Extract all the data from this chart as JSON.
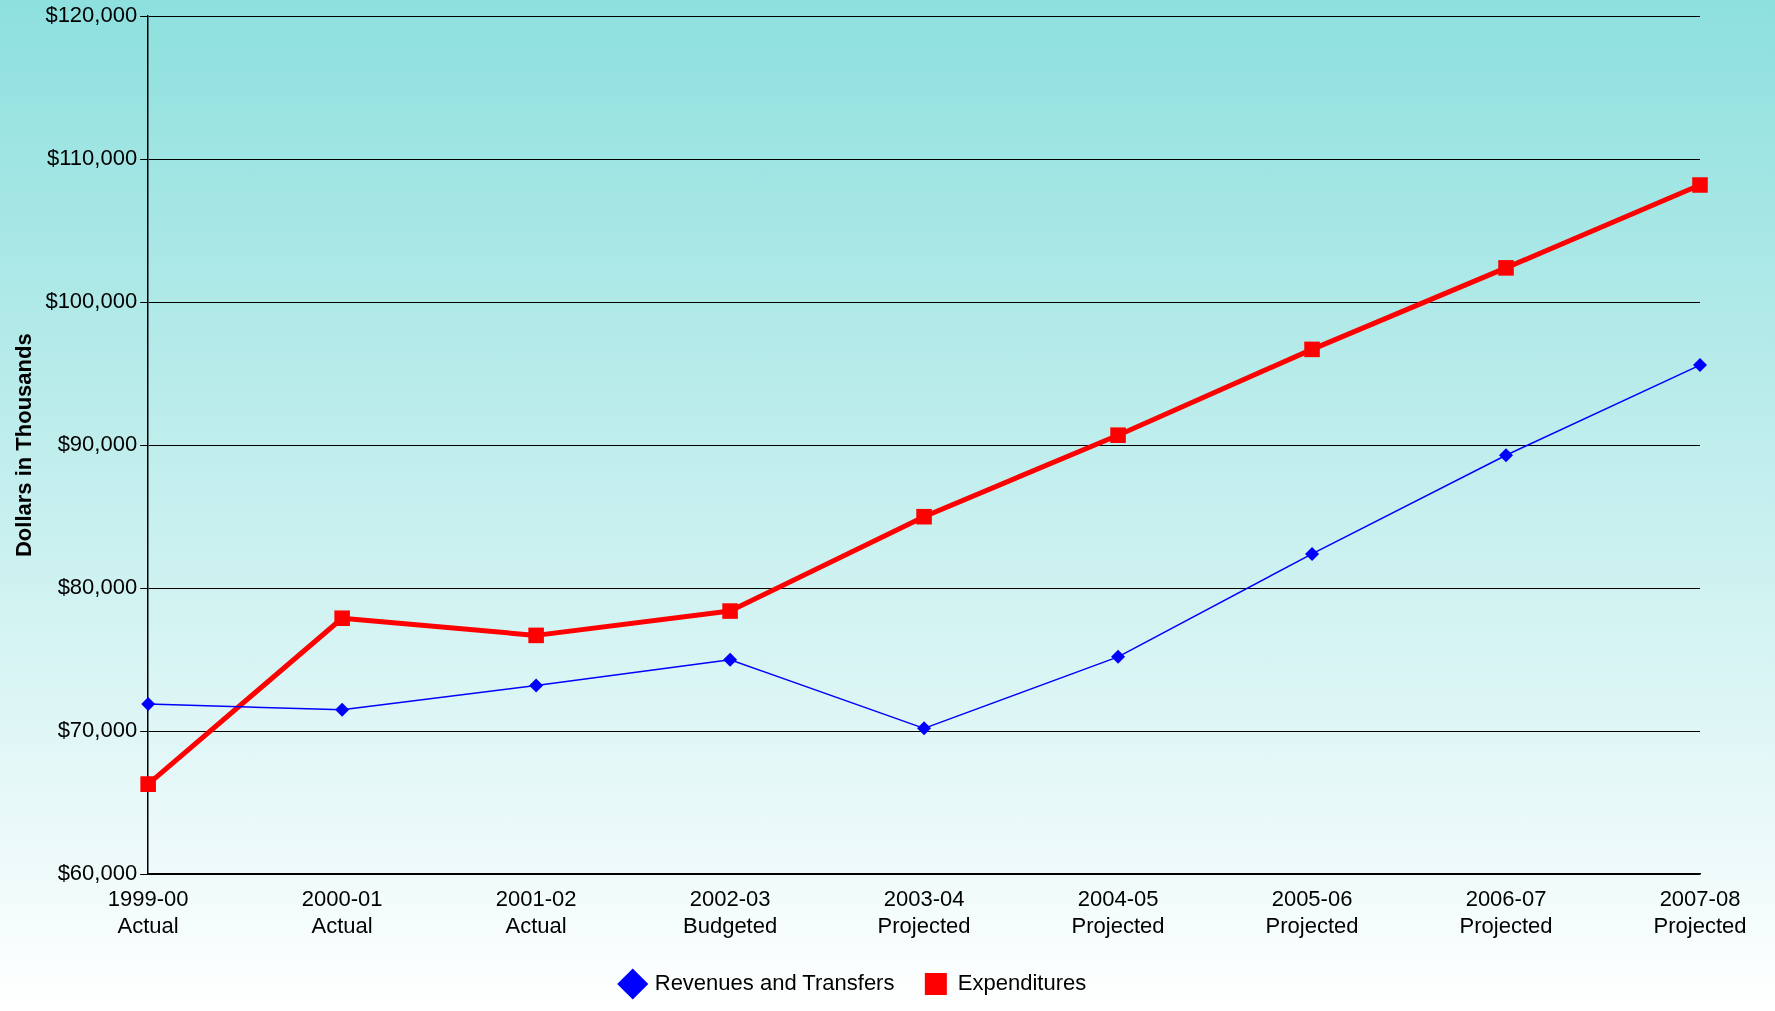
{
  "chart_data": {
    "type": "line",
    "ylabel": "Dollars in Thousands",
    "categories": [
      "1999-00\nActual",
      "2000-01\nActual",
      "2001-02\nActual",
      "2002-03\nBudgeted",
      "2003-04\nProjected",
      "2004-05\nProjected",
      "2005-06\nProjected",
      "2006-07\nProjected",
      "2007-08\nProjected"
    ],
    "series": [
      {
        "name": "Revenues and Transfers",
        "color": "#0000ff",
        "marker": "diamond",
        "values": [
          71900,
          71500,
          73200,
          75000,
          70200,
          75200,
          82400,
          89300,
          95600
        ]
      },
      {
        "name": "Expenditures",
        "color": "#ff0000",
        "marker": "square",
        "values": [
          66300,
          77900,
          76700,
          78400,
          85000,
          90700,
          96700,
          102400,
          108200
        ]
      }
    ],
    "ylim": [
      60000,
      120000
    ],
    "yticks": [
      {
        "value": 60000,
        "label": "$60,000"
      },
      {
        "value": 70000,
        "label": "$70,000"
      },
      {
        "value": 80000,
        "label": "$80,000"
      },
      {
        "value": 90000,
        "label": "$90,000"
      },
      {
        "value": 100000,
        "label": "$100,000"
      },
      {
        "value": 110000,
        "label": "$110,000"
      },
      {
        "value": 120000,
        "label": "$120,000"
      }
    ],
    "grid": "y",
    "legend": "bottom",
    "line_style": "solid"
  }
}
